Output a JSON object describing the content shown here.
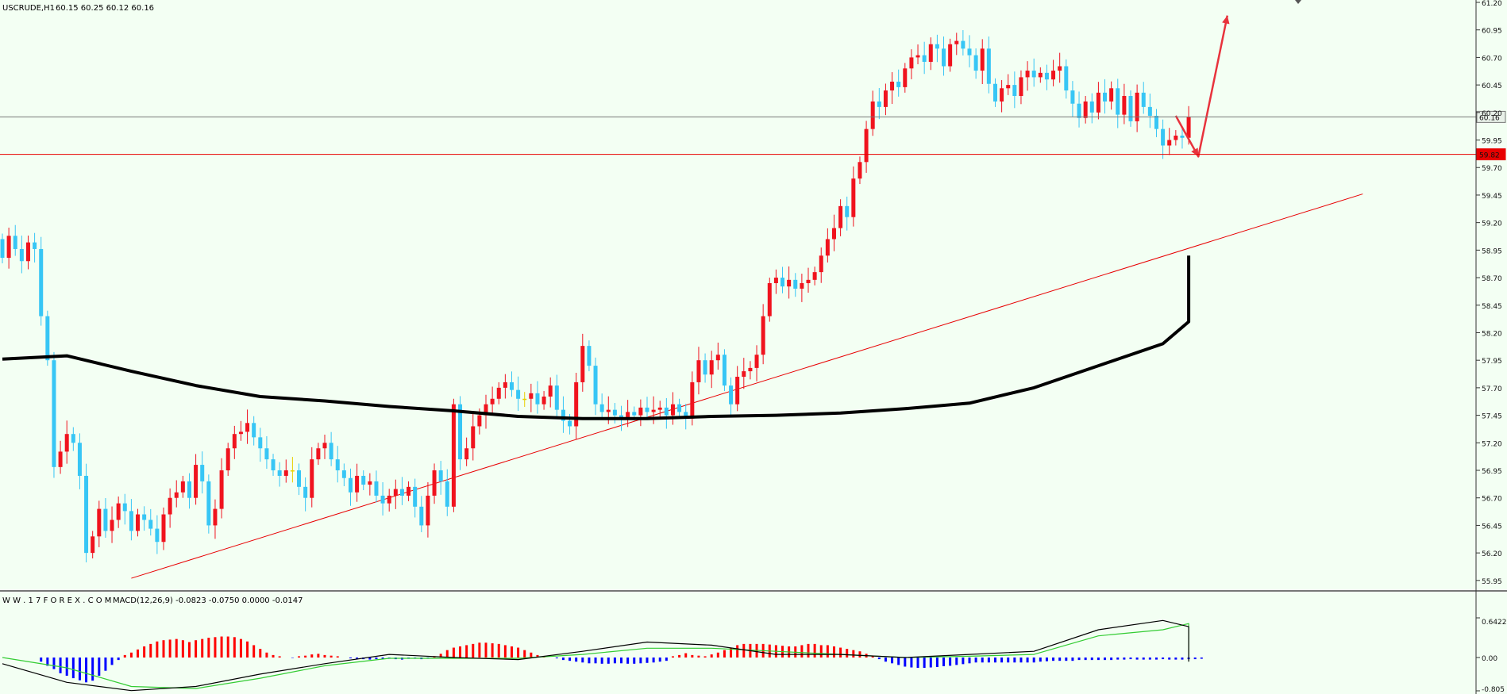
{
  "header": {
    "symbol": "USCRUDE,H1",
    "ohlc": "60.15 60.25 60.12 60.16"
  },
  "indicator_header": {
    "watermark": "W W . 1 7 F O R E X . C O M",
    "label": "MACD(12,26,9) -0.0823 -0.0750 0.0000 -0.0147"
  },
  "colors": {
    "background": "#F3FFF3",
    "bull": "#F0131E",
    "bear": "#37C6F5",
    "doji": "#E8D000",
    "ma": "#000000",
    "trendline": "#E80000",
    "arrow": "#E8323C",
    "hist_pos": "#FF0000",
    "hist_neg": "#0000FF",
    "macd_line": "#000000",
    "signal_line": "#33CC33"
  },
  "price_axis": {
    "ticks": [
      "61.20",
      "60.95",
      "60.70",
      "60.45",
      "60.20",
      "59.95",
      "59.70",
      "59.45",
      "59.20",
      "58.95",
      "58.70",
      "58.45",
      "58.20",
      "57.95",
      "57.70",
      "57.45",
      "57.20",
      "56.95",
      "56.70",
      "56.45",
      "56.20",
      "55.95"
    ],
    "current_price_label": "60.16",
    "level_label": "59.82"
  },
  "macd_axis": {
    "ticks": [
      "0.6422",
      "0.00",
      "-0.805"
    ]
  },
  "chart_data": [
    {
      "type": "candlestick",
      "title": "USCRUDE,H1",
      "ylim": [
        55.92,
        61.2
      ],
      "y_ticks": [
        61.2,
        60.95,
        60.7,
        60.45,
        60.2,
        59.95,
        59.7,
        59.45,
        59.2,
        58.95,
        58.7,
        58.45,
        58.2,
        57.95,
        57.7,
        57.45,
        57.2,
        56.95,
        56.7,
        56.45,
        56.2,
        55.95
      ],
      "start_close": 59.05,
      "closes": [
        58.88,
        59.08,
        58.96,
        58.85,
        59.02,
        58.96,
        58.35,
        57.95,
        56.98,
        57.12,
        57.28,
        57.2,
        56.9,
        56.2,
        56.35,
        56.6,
        56.4,
        56.5,
        56.65,
        56.58,
        56.4,
        56.55,
        56.5,
        56.42,
        56.3,
        56.55,
        56.7,
        56.75,
        56.85,
        56.7,
        57.0,
        56.85,
        56.45,
        56.6,
        56.95,
        57.15,
        57.28,
        57.3,
        57.38,
        57.25,
        57.15,
        57.05,
        56.95,
        56.9,
        56.95,
        56.95,
        56.8,
        56.7,
        57.05,
        57.15,
        57.2,
        57.05,
        56.95,
        56.88,
        56.75,
        56.9,
        56.82,
        56.85,
        56.72,
        56.65,
        56.72,
        56.78,
        56.72,
        56.8,
        56.62,
        56.45,
        56.72,
        56.95,
        56.85,
        56.62,
        57.55,
        57.05,
        57.15,
        57.35,
        57.45,
        57.55,
        57.6,
        57.7,
        57.75,
        57.68,
        57.6,
        57.6,
        57.65,
        57.55,
        57.62,
        57.72,
        57.5,
        57.4,
        57.35,
        57.75,
        58.08,
        57.9,
        57.55,
        57.48,
        57.5,
        57.45,
        57.43,
        57.48,
        57.45,
        57.52,
        57.48,
        57.5,
        57.52,
        57.45,
        57.55,
        57.48,
        57.42,
        57.75,
        57.95,
        57.82,
        57.95,
        58.0,
        57.72,
        57.55,
        57.8,
        57.85,
        57.88,
        58.0,
        58.35,
        58.65,
        58.7,
        58.62,
        58.68,
        58.6,
        58.65,
        58.68,
        58.75,
        58.9,
        59.05,
        59.15,
        59.35,
        59.25,
        59.6,
        59.75,
        60.05,
        60.3,
        60.25,
        60.4,
        60.48,
        60.43,
        60.6,
        60.7,
        60.72,
        60.66,
        60.82,
        60.78,
        60.62,
        60.82,
        60.85,
        60.78,
        60.72,
        60.58,
        60.78,
        60.46,
        60.3,
        60.42,
        60.45,
        60.35,
        60.52,
        60.58,
        60.52,
        60.56,
        60.5,
        60.58,
        60.62,
        60.4,
        60.28,
        60.15,
        60.3,
        60.2,
        60.38,
        60.3,
        60.42,
        60.18,
        60.35,
        60.12,
        60.38,
        60.25,
        60.17,
        60.05,
        59.9,
        59.95,
        59.99,
        59.97,
        60.16
      ],
      "moving_average": {
        "period_label": "",
        "values_every_10_bars": [
          57.96,
          57.99,
          57.85,
          57.72,
          57.62,
          57.58,
          57.53,
          57.49,
          57.44,
          57.42,
          57.42,
          57.44,
          57.45,
          57.47,
          57.51,
          57.56,
          57.7,
          57.9,
          58.1,
          58.3,
          58.5,
          58.65,
          58.75,
          58.84,
          58.9
        ]
      },
      "trendlines": [
        {
          "from": {
            "bar": 20,
            "price": 55.97
          },
          "to": {
            "bar": 211,
            "price": 59.46
          }
        }
      ],
      "horizontal_lines": [
        {
          "price": 60.16
        },
        {
          "price": 59.82
        }
      ],
      "forecast_arrow": [
        {
          "bar": 182,
          "price": 60.17
        },
        {
          "bar": 185.5,
          "price": 59.8
        },
        {
          "bar": 190,
          "price": 61.08
        }
      ]
    },
    {
      "type": "macd",
      "title": "MACD(12,26,9)",
      "ylim": [
        -0.805,
        0.6422
      ],
      "histogram": [
        0.0,
        0.0,
        0.0,
        0.0,
        0.0,
        0.0,
        -0.1,
        -0.2,
        -0.28,
        -0.38,
        -0.44,
        -0.5,
        -0.55,
        -0.6,
        -0.56,
        -0.44,
        -0.32,
        -0.18,
        -0.06,
        0.04,
        0.08,
        0.13,
        0.18,
        0.22,
        0.26,
        0.28,
        0.29,
        0.3,
        0.28,
        0.25,
        0.28,
        0.3,
        0.32,
        0.33,
        0.34,
        0.34,
        0.33,
        0.3,
        0.26,
        0.2,
        0.14,
        0.08,
        0.04,
        0.02,
        0.0,
        -0.01,
        0.02,
        0.03,
        0.05,
        0.06,
        0.04,
        0.03,
        0.02,
        0.0,
        -0.02,
        -0.03,
        -0.04,
        -0.05,
        -0.04,
        -0.03,
        -0.02,
        -0.04,
        -0.05,
        -0.03,
        -0.02,
        -0.04,
        -0.02,
        0.02,
        0.06,
        0.12,
        0.16,
        0.18,
        0.2,
        0.22,
        0.24,
        0.24,
        0.23,
        0.22,
        0.2,
        0.18,
        0.16,
        0.12,
        0.08,
        0.04,
        0.02,
        0.0,
        -0.02,
        -0.06,
        -0.08,
        -0.1,
        -0.12,
        -0.14,
        -0.14,
        -0.15,
        -0.15,
        -0.14,
        -0.14,
        -0.15,
        -0.15,
        -0.14,
        -0.13,
        -0.12,
        -0.1,
        -0.08,
        0.02,
        0.04,
        0.07,
        0.04,
        0.03,
        0.02,
        0.05,
        0.08,
        0.12,
        0.16,
        0.2,
        0.22,
        0.22,
        0.22,
        0.22,
        0.21,
        0.2,
        0.19,
        0.18,
        0.18,
        0.2,
        0.22,
        0.22,
        0.2,
        0.2,
        0.18,
        0.16,
        0.14,
        0.12,
        0.1,
        0.06,
        0.02,
        -0.04,
        -0.1,
        -0.14,
        -0.18,
        -0.22,
        -0.24,
        -0.25,
        -0.25,
        -0.24,
        -0.23,
        -0.21,
        -0.2,
        -0.18,
        -0.16,
        -0.14,
        -0.12,
        -0.12,
        -0.12,
        -0.12,
        -0.12,
        -0.12,
        -0.12,
        -0.12,
        -0.12,
        -0.12,
        -0.1,
        -0.09,
        -0.08,
        -0.08,
        -0.08,
        -0.08,
        -0.06,
        -0.06,
        -0.06,
        -0.06,
        -0.06,
        -0.06,
        -0.05,
        -0.05,
        -0.04,
        -0.05,
        -0.05,
        -0.05,
        -0.05,
        -0.04,
        -0.05,
        -0.05,
        -0.05,
        -0.04,
        -0.04,
        -0.03
      ],
      "macd_every_10_bars": [
        -0.15,
        -0.6,
        -0.8,
        -0.7,
        -0.4,
        -0.15,
        0.05,
        0.0,
        -0.05,
        0.1,
        0.25,
        0.2,
        0.05,
        0.05,
        0.0,
        0.05,
        0.1,
        0.45,
        0.6,
        0.5,
        0.2,
        0.05,
        -0.02,
        -0.07,
        -0.1
      ],
      "signal_every_10_bars": [
        0.0,
        -0.25,
        -0.7,
        -0.75,
        -0.5,
        -0.2,
        -0.02,
        -0.02,
        -0.02,
        0.05,
        0.15,
        0.15,
        0.1,
        0.05,
        0.0,
        0.02,
        0.05,
        0.35,
        0.45,
        0.55,
        0.35,
        0.15,
        0.02,
        -0.04,
        -0.08
      ]
    }
  ]
}
